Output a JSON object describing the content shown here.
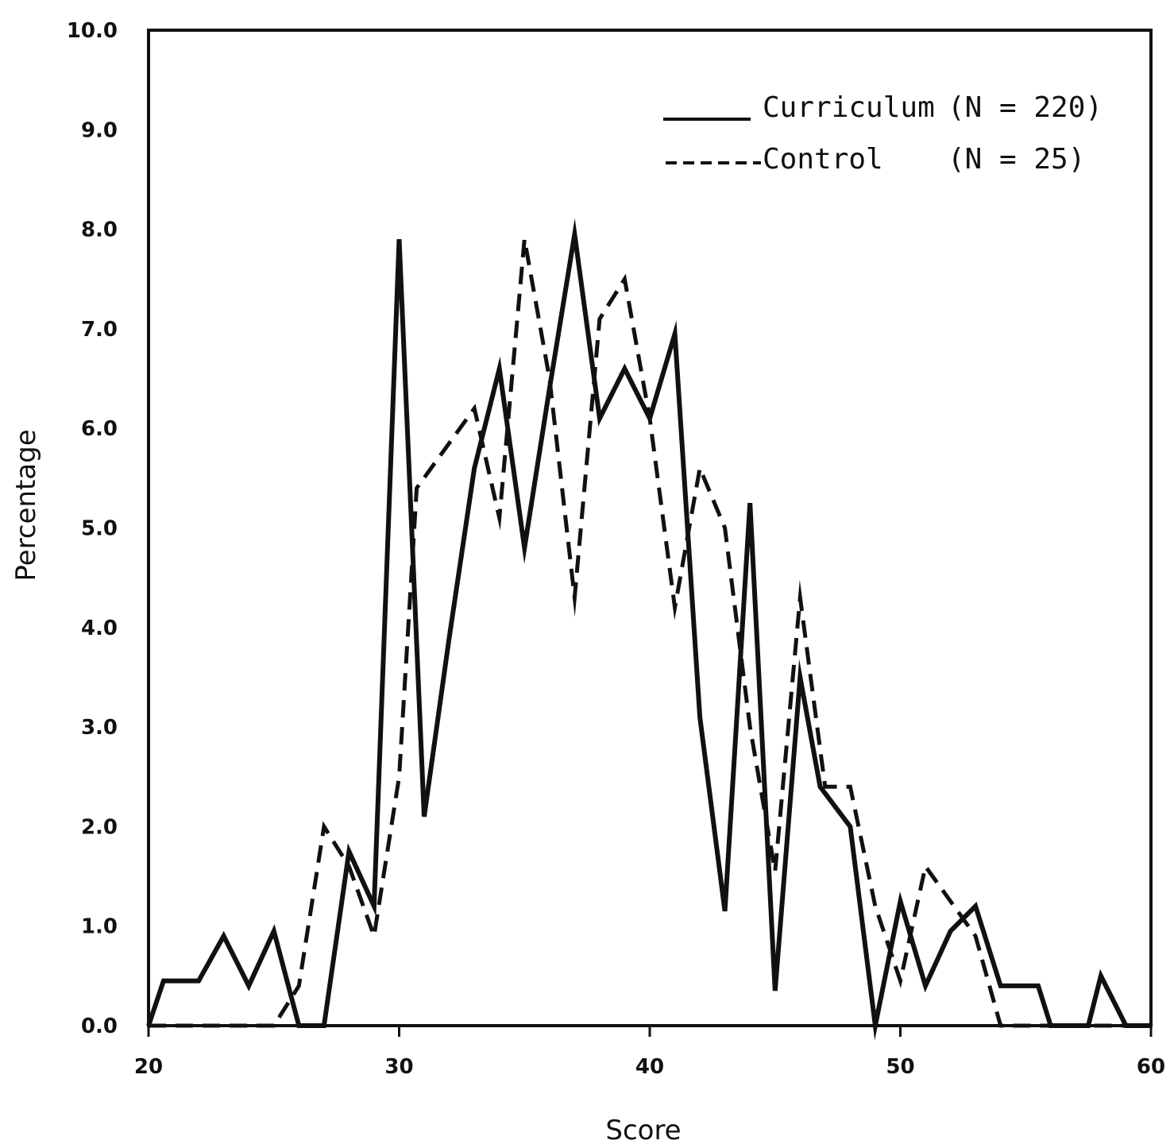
{
  "chart_data": {
    "type": "line",
    "xlabel": "Score",
    "ylabel": "Percentage",
    "xlim": [
      20,
      60
    ],
    "ylim": [
      0,
      10
    ],
    "x_ticks": [
      20,
      30,
      40,
      50,
      60
    ],
    "x_tick_labels": [
      "20",
      "30",
      "40",
      "50",
      "60"
    ],
    "y_ticks": [
      0,
      1,
      2,
      3,
      4,
      5,
      6,
      7,
      8,
      9,
      10
    ],
    "y_tick_labels": [
      "0.0",
      "1.0",
      "2.0",
      "3.0",
      "4.0",
      "5.0",
      "6.0",
      "7.0",
      "8.0",
      "9.0",
      "10.0"
    ],
    "grid": false,
    "legend_position": "top-right",
    "legend": [
      {
        "line": "______",
        "label": "Curriculum",
        "n": "(N = 220)"
      },
      {
        "line": "------",
        "label": "Control",
        "n": "(N = 25)"
      }
    ],
    "series": [
      {
        "name": "Curriculum (N = 220)",
        "style": "solid",
        "color": "#111111",
        "points": [
          [
            20,
            0
          ],
          [
            20.6,
            0.45
          ],
          [
            22,
            0.45
          ],
          [
            23,
            0.9
          ],
          [
            24,
            0.4
          ],
          [
            25,
            0.95
          ],
          [
            26,
            0
          ],
          [
            27,
            0
          ],
          [
            28,
            1.75
          ],
          [
            29,
            1.2
          ],
          [
            30,
            7.9
          ],
          [
            31,
            2.1
          ],
          [
            32,
            3.9
          ],
          [
            33,
            5.6
          ],
          [
            34,
            6.6
          ],
          [
            35,
            4.8
          ],
          [
            36,
            6.4
          ],
          [
            37,
            7.95
          ],
          [
            38,
            6.1
          ],
          [
            39,
            6.6
          ],
          [
            40,
            6.1
          ],
          [
            41,
            6.95
          ],
          [
            42,
            3.1
          ],
          [
            43,
            1.15
          ],
          [
            44,
            5.25
          ],
          [
            45,
            0.35
          ],
          [
            46,
            3.5
          ],
          [
            46.8,
            2.4
          ],
          [
            48,
            2.0
          ],
          [
            49,
            0
          ],
          [
            50,
            1.25
          ],
          [
            51,
            0.4
          ],
          [
            52,
            0.95
          ],
          [
            53,
            1.2
          ],
          [
            54,
            0.4
          ],
          [
            55.5,
            0.4
          ],
          [
            56,
            0
          ],
          [
            57.5,
            0
          ],
          [
            58,
            0.5
          ],
          [
            59,
            0
          ],
          [
            60,
            0
          ]
        ]
      },
      {
        "name": "Control (N = 25)",
        "style": "dashed",
        "color": "#111111",
        "points": [
          [
            20,
            0
          ],
          [
            25,
            0
          ],
          [
            26,
            0.4
          ],
          [
            27,
            2.0
          ],
          [
            28,
            1.6
          ],
          [
            29,
            0.9
          ],
          [
            30,
            2.5
          ],
          [
            30.7,
            5.4
          ],
          [
            33,
            6.2
          ],
          [
            34,
            5.1
          ],
          [
            35,
            7.9
          ],
          [
            36,
            6.5
          ],
          [
            37,
            4.3
          ],
          [
            38,
            7.1
          ],
          [
            39,
            7.5
          ],
          [
            40,
            6.1
          ],
          [
            41,
            4.2
          ],
          [
            42,
            5.6
          ],
          [
            43,
            5.0
          ],
          [
            44,
            3.0
          ],
          [
            45,
            1.55
          ],
          [
            46,
            4.3
          ],
          [
            47,
            2.4
          ],
          [
            48,
            2.4
          ],
          [
            49,
            1.2
          ],
          [
            50,
            0.45
          ],
          [
            51,
            1.6
          ],
          [
            53,
            0.9
          ],
          [
            54,
            0
          ],
          [
            60,
            0
          ]
        ]
      }
    ]
  }
}
